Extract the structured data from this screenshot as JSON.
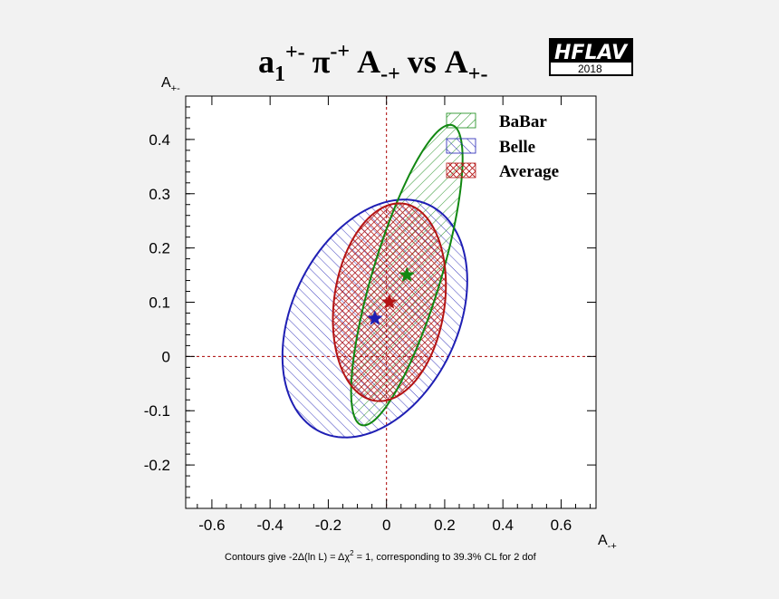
{
  "chart_data": {
    "type": "scatter",
    "title": {
      "main": "a",
      "main_sub": "1",
      "main_sup": "+-",
      "pi": "π",
      "pi_sup": "-+",
      "a1": "A",
      "a1_sub": "-+",
      "vs": "vs",
      "a2": "A",
      "a2_sub": "+-"
    },
    "xlabel": {
      "base": "A",
      "sub": "-+"
    },
    "ylabel": {
      "base": "A",
      "sub": "+-"
    },
    "xlim": [
      -0.69,
      0.72
    ],
    "ylim": [
      -0.28,
      0.48
    ],
    "x_ticks": [
      -0.6,
      -0.4,
      -0.2,
      0,
      0.2,
      0.4,
      0.6
    ],
    "x_tick_labels": [
      "-0.6",
      "-0.4",
      "-0.2",
      "0",
      "0.2",
      "0.4",
      "0.6"
    ],
    "y_ticks": [
      -0.2,
      -0.1,
      0,
      0.1,
      0.2,
      0.3,
      0.4
    ],
    "y_tick_labels": [
      "-0.2",
      "-0.1",
      "0",
      "0.1",
      "0.2",
      "0.3",
      "0.4"
    ],
    "grid": false,
    "zero_lines": true,
    "legend_position": "top-right",
    "series": [
      {
        "name": "BaBar",
        "color": "#118811",
        "hatch": "diagonal-down",
        "center": [
          0.07,
          0.15
        ],
        "contour": {
          "cx": 0.07,
          "cy": 0.15,
          "rx": 0.32,
          "ry": 0.105,
          "angle_deg": 58
        }
      },
      {
        "name": "Belle",
        "color": "#1f1fb4",
        "hatch": "diagonal-up",
        "center": [
          -0.04,
          0.07
        ],
        "contour": {
          "cx": -0.04,
          "cy": 0.07,
          "rx": 0.33,
          "ry": 0.2,
          "angle_deg": 20
        }
      },
      {
        "name": "Average",
        "color": "#b41414",
        "hatch": "cross",
        "center": [
          0.01,
          0.1
        ],
        "contour": {
          "cx": 0.01,
          "cy": 0.1,
          "rx": 0.205,
          "ry": 0.17,
          "angle_deg": 35
        }
      }
    ],
    "caption": "Contours give -2Δ(ln L) = Δχ² = 1, corresponding to 39.3% CL for 2 dof",
    "caption_parts": {
      "before": "Contours give -2Δ(ln L) = Δχ",
      "sup": "2",
      "after": " = 1, corresponding to 39.3% CL for 2 dof"
    }
  },
  "logo": {
    "name": "HFLAV",
    "year": "2018"
  },
  "colors": {
    "background": "#f2f2f2",
    "frame": "#000000",
    "zero_line": "#aa0000"
  }
}
